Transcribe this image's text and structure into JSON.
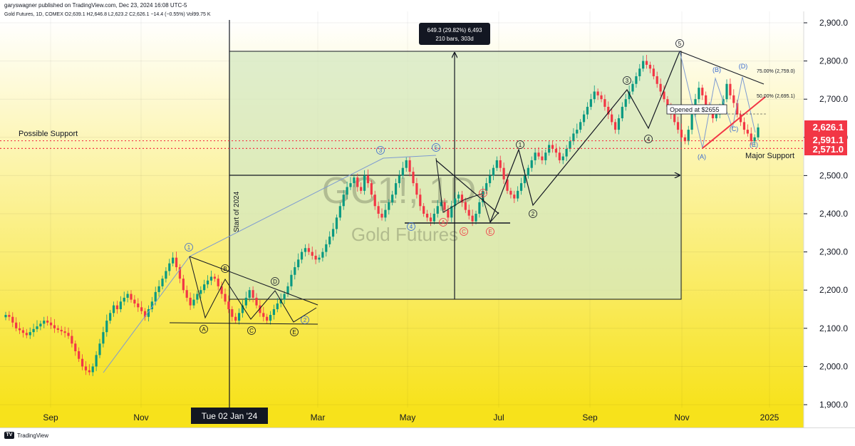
{
  "header": {
    "published": "garyswagner published on TradingView.com, Dec 23, 2024 16:08 UTC-5",
    "symbol_line": "Gold Futures, 1D, COMEX  O2,639.1  H2,646.8  L2,623.2  C2,626.1  −14.4 (−0.55%)  Vol99.75 K"
  },
  "footer": {
    "brand": "TradingView",
    "logo_icon": "tradingview-logo-icon"
  },
  "colors": {
    "bull": "#089981",
    "bear": "#f23645",
    "bg_top": "#ffffff",
    "bg_bottom": "#f7e21b",
    "range_box": "#dbe9c6",
    "accent_red": "#f23645"
  },
  "watermark": {
    "symbol": "GC1!, 1D",
    "name": "Gold Futures"
  },
  "chart_data": {
    "type": "candlestick",
    "x_axis": {
      "ticks": [
        "Sep",
        "Nov",
        "Mar",
        "May",
        "Jul",
        "Sep",
        "Nov",
        "2025"
      ],
      "crosshair_label": "Tue 02 Jan '24"
    },
    "y_axis": {
      "range": [
        1885,
        2935
      ],
      "ticks": [
        "2,900.0",
        "2,800.0",
        "2,700.0",
        "2,600.0",
        "2,500.0",
        "2,400.0",
        "2,300.0",
        "2,200.0",
        "2,100.0",
        "2,000.0",
        "1,900.0"
      ]
    },
    "price_labels": [
      {
        "value": 2626.1,
        "text": "2,626.1",
        "color": "#f23645"
      },
      {
        "value": 2591.1,
        "text": "2,591.1",
        "color": "#f23645"
      },
      {
        "value": 2571.0,
        "text": "2,571.0",
        "color": "#f23645"
      }
    ],
    "support_lines": [
      {
        "value": 2591.1,
        "label": "Possible Support"
      },
      {
        "value": 2571.0,
        "label": "Major Support"
      }
    ],
    "vertical_line_label": "Start of 2024",
    "measure_box": {
      "line1": "649.3 (29.82%) 6,493",
      "line2": "210 bars, 303d"
    },
    "fib_labels": [
      {
        "value": 2759.0,
        "text": "75.00% (2,759.0)"
      },
      {
        "value": 2695.1,
        "text": "50.00% (2,695.1)"
      }
    ],
    "note": "Opened at $2655",
    "wave_labels": [
      "1",
      "2",
      "3",
      "4",
      "5",
      "A",
      "B",
      "C",
      "D",
      "E",
      "(A)",
      "(B)",
      "(C)",
      "(D)",
      "(E)"
    ],
    "closes": [
      2135,
      2130,
      2115,
      2100,
      2095,
      2088,
      2082,
      2090,
      2098,
      2105,
      2112,
      2120,
      2115,
      2108,
      2100,
      2096,
      2092,
      2088,
      2080,
      2060,
      2040,
      2020,
      2000,
      1990,
      1985,
      2000,
      2030,
      2060,
      2090,
      2120,
      2140,
      2160,
      2150,
      2170,
      2180,
      2190,
      2175,
      2165,
      2155,
      2145,
      2130,
      2150,
      2170,
      2195,
      2210,
      2230,
      2250,
      2270,
      2285,
      2260,
      2230,
      2200,
      2180,
      2160,
      2175,
      2190,
      2200,
      2215,
      2225,
      2235,
      2230,
      2210,
      2190,
      2170,
      2150,
      2130,
      2120,
      2140,
      2160,
      2180,
      2200,
      2180,
      2160,
      2140,
      2130,
      2120,
      2135,
      2150,
      2165,
      2175,
      2190,
      2210,
      2240,
      2260,
      2280,
      2300,
      2310,
      2300,
      2290,
      2280,
      2285,
      2300,
      2320,
      2340,
      2360,
      2390,
      2420,
      2450,
      2470,
      2480,
      2495,
      2470,
      2460,
      2500,
      2480,
      2450,
      2420,
      2400,
      2390,
      2410,
      2430,
      2450,
      2480,
      2500,
      2520,
      2540,
      2510,
      2480,
      2450,
      2420,
      2400,
      2390,
      2380,
      2400,
      2420,
      2430,
      2410,
      2390,
      2420,
      2440,
      2450,
      2430,
      2410,
      2395,
      2380,
      2400,
      2430,
      2460,
      2480,
      2500,
      2520,
      2540,
      2520,
      2490,
      2460,
      2450,
      2440,
      2460,
      2480,
      2500,
      2520,
      2540,
      2560,
      2550,
      2540,
      2560,
      2580,
      2570,
      2560,
      2540,
      2550,
      2570,
      2590,
      2610,
      2620,
      2640,
      2660,
      2680,
      2700,
      2720,
      2710,
      2700,
      2680,
      2660,
      2640,
      2620,
      2650,
      2680,
      2700,
      2720,
      2740,
      2760,
      2780,
      2800,
      2790,
      2780,
      2760,
      2740,
      2720,
      2700,
      2680,
      2660,
      2640,
      2620,
      2600,
      2590,
      2620,
      2660,
      2700,
      2730,
      2710,
      2680,
      2670,
      2650,
      2660,
      2680,
      2700,
      2740,
      2710,
      2690,
      2660,
      2640,
      2620,
      2610,
      2590,
      2600,
      2626
    ]
  }
}
